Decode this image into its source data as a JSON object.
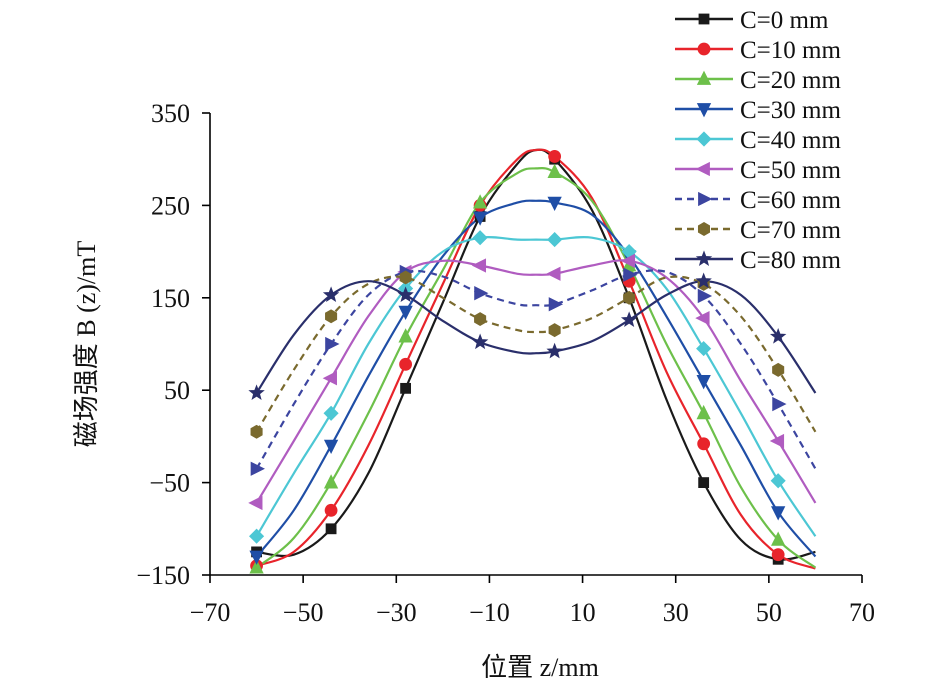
{
  "chart_data": {
    "type": "line",
    "xlabel": "位置 z/mm",
    "ylabel": "磁场强度 B (z)/mT",
    "xlim": [
      -70,
      70
    ],
    "ylim": [
      -150,
      350
    ],
    "xticks": [
      -70,
      -50,
      -30,
      -10,
      10,
      30,
      50,
      70
    ],
    "yticks": [
      -150,
      -50,
      50,
      150,
      250,
      350
    ],
    "xtick_labels": [
      "−70",
      "−50",
      "−30",
      "−10",
      "10",
      "30",
      "50",
      "70"
    ],
    "ytick_labels": [
      "−150",
      "−50",
      "50",
      "150",
      "250",
      "350"
    ],
    "legend_position": "top-right",
    "marker_x": [
      -60,
      -44,
      -28,
      -12,
      4,
      20,
      36,
      52
    ],
    "series": [
      {
        "name": "C=0 mm",
        "color": "#1a1a1a",
        "marker": "square",
        "dash": false,
        "x": [
          -60,
          -52,
          -44,
          -36,
          -28,
          -20,
          -12,
          -4,
          0,
          4,
          12,
          20,
          28,
          36,
          44,
          52,
          60
        ],
        "y": [
          -125,
          -128,
          -100,
          -40,
          52,
          145,
          238,
          295,
          310,
          300,
          245,
          150,
          40,
          -50,
          -112,
          -133,
          -125
        ]
      },
      {
        "name": "C=10 mm",
        "color": "#e8242b",
        "marker": "circle",
        "dash": false,
        "x": [
          -60,
          -52,
          -44,
          -36,
          -28,
          -20,
          -12,
          -4,
          0,
          4,
          12,
          20,
          28,
          36,
          44,
          52,
          60
        ],
        "y": [
          -140,
          -125,
          -80,
          -10,
          78,
          165,
          250,
          300,
          310,
          303,
          258,
          168,
          70,
          -8,
          -85,
          -128,
          -143
        ]
      },
      {
        "name": "C=20 mm",
        "color": "#6dc04a",
        "marker": "triangle-up",
        "dash": false,
        "x": [
          -60,
          -52,
          -44,
          -36,
          -28,
          -20,
          -12,
          -4,
          0,
          4,
          12,
          20,
          28,
          36,
          44,
          52,
          60
        ],
        "y": [
          -142,
          -110,
          -50,
          25,
          108,
          180,
          253,
          285,
          290,
          286,
          255,
          185,
          100,
          25,
          -55,
          -112,
          -142
        ]
      },
      {
        "name": "C=30 mm",
        "color": "#1f4ea6",
        "marker": "triangle-down",
        "dash": false,
        "x": [
          -60,
          -52,
          -44,
          -36,
          -28,
          -20,
          -12,
          -4,
          0,
          4,
          12,
          20,
          28,
          36,
          44,
          52,
          60
        ],
        "y": [
          -130,
          -80,
          -10,
          65,
          135,
          195,
          237,
          253,
          255,
          253,
          240,
          195,
          130,
          60,
          -10,
          -82,
          -130
        ]
      },
      {
        "name": "C=40 mm",
        "color": "#4cc7d4",
        "marker": "diamond",
        "dash": false,
        "x": [
          -60,
          -52,
          -44,
          -36,
          -28,
          -20,
          -12,
          -4,
          0,
          4,
          12,
          20,
          28,
          36,
          44,
          52,
          60
        ],
        "y": [
          -108,
          -40,
          25,
          100,
          160,
          200,
          215,
          213,
          213,
          213,
          215,
          200,
          160,
          95,
          25,
          -48,
          -108
        ]
      },
      {
        "name": "C=50 mm",
        "color": "#b05cc0",
        "marker": "triangle-left",
        "dash": false,
        "x": [
          -60,
          -52,
          -44,
          -36,
          -28,
          -20,
          -12,
          -4,
          0,
          4,
          12,
          20,
          28,
          36,
          44,
          52,
          60
        ],
        "y": [
          -72,
          -5,
          63,
          130,
          178,
          190,
          185,
          176,
          175,
          176,
          185,
          190,
          172,
          128,
          60,
          -5,
          -72
        ]
      },
      {
        "name": "C=60 mm",
        "color": "#3c45a0",
        "marker": "triangle-right",
        "dash": true,
        "x": [
          -60,
          -52,
          -44,
          -36,
          -28,
          -20,
          -12,
          -4,
          0,
          4,
          12,
          20,
          28,
          36,
          44,
          52,
          60
        ],
        "y": [
          -35,
          35,
          100,
          153,
          178,
          173,
          155,
          143,
          142,
          143,
          158,
          175,
          178,
          152,
          100,
          35,
          -35
        ]
      },
      {
        "name": "C=70 mm",
        "color": "#7a6a2e",
        "marker": "hexagon",
        "dash": true,
        "x": [
          -60,
          -52,
          -44,
          -36,
          -28,
          -20,
          -12,
          -4,
          0,
          4,
          12,
          20,
          28,
          36,
          44,
          52,
          60
        ],
        "y": [
          5,
          72,
          130,
          165,
          172,
          150,
          127,
          115,
          113,
          115,
          128,
          150,
          172,
          165,
          130,
          72,
          5
        ]
      },
      {
        "name": "C=80 mm",
        "color": "#2a2f6b",
        "marker": "star",
        "dash": false,
        "x": [
          -60,
          -52,
          -44,
          -36,
          -28,
          -20,
          -12,
          -4,
          0,
          4,
          12,
          20,
          28,
          36,
          44,
          52,
          60
        ],
        "y": [
          47,
          110,
          153,
          168,
          153,
          125,
          102,
          91,
          90,
          92,
          103,
          126,
          153,
          168,
          153,
          108,
          47
        ]
      }
    ]
  }
}
